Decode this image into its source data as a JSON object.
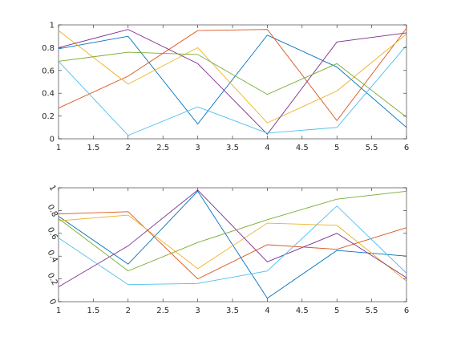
{
  "palette": [
    "#0072BD",
    "#D95319",
    "#EDB120",
    "#7E2F8E",
    "#77AC30",
    "#4DBEEE"
  ],
  "chart_data": [
    {
      "type": "line",
      "x": [
        1,
        2,
        3,
        4,
        5,
        6
      ],
      "xlim": [
        1,
        6
      ],
      "ylim": [
        0,
        1
      ],
      "xticks": [
        1,
        1.5,
        2,
        2.5,
        3,
        3.5,
        4,
        4.5,
        5,
        5.5,
        6
      ],
      "xtick_labels": [
        "1",
        "1.5",
        "2",
        "2.5",
        "3",
        "3.5",
        "4",
        "4.5",
        "5",
        "5.5",
        "6"
      ],
      "yticks": [
        0,
        0.2,
        0.4,
        0.6,
        0.8,
        1
      ],
      "ytick_labels": [
        "0",
        "0.2",
        "0.4",
        "0.6",
        "0.8",
        "1"
      ],
      "ytick_rotated": false,
      "grid": false,
      "series": [
        {
          "values": [
            0.79,
            0.9,
            0.13,
            0.91,
            0.63,
            0.1
          ]
        },
        {
          "values": [
            0.27,
            0.55,
            0.95,
            0.96,
            0.16,
            0.97
          ]
        },
        {
          "values": [
            0.95,
            0.48,
            0.8,
            0.14,
            0.42,
            0.92
          ]
        },
        {
          "values": [
            0.8,
            0.96,
            0.66,
            0.04,
            0.85,
            0.93
          ]
        },
        {
          "values": [
            0.68,
            0.76,
            0.74,
            0.39,
            0.66,
            0.19
          ]
        },
        {
          "values": [
            0.68,
            0.03,
            0.28,
            0.05,
            0.1,
            0.82
          ]
        }
      ]
    },
    {
      "type": "line",
      "x": [
        1,
        2,
        3,
        4,
        5,
        6
      ],
      "xlim": [
        1,
        6
      ],
      "ylim": [
        0,
        1
      ],
      "xticks": [
        1,
        1.5,
        2,
        2.5,
        3,
        3.5,
        4,
        4.5,
        5,
        5.5,
        6
      ],
      "xtick_labels": [
        "1",
        "1.5",
        "2",
        "2.5",
        "3",
        "3.5",
        "4",
        "4.5",
        "5",
        "5.5",
        "6"
      ],
      "yticks": [
        0,
        0.2,
        0.4,
        0.6,
        0.8,
        1
      ],
      "ytick_labels": [
        "0",
        "0.2",
        "0.4",
        "0.6",
        "0.8",
        "1"
      ],
      "ytick_rotated": true,
      "grid": false,
      "series": [
        {
          "values": [
            0.75,
            0.33,
            0.97,
            0.03,
            0.45,
            0.4
          ]
        },
        {
          "values": [
            0.77,
            0.79,
            0.2,
            0.5,
            0.46,
            0.65
          ]
        },
        {
          "values": [
            0.71,
            0.76,
            0.29,
            0.69,
            0.67,
            0.18
          ]
        },
        {
          "values": [
            0.13,
            0.49,
            0.98,
            0.35,
            0.6,
            0.21
          ]
        },
        {
          "values": [
            0.73,
            0.27,
            0.52,
            0.72,
            0.9,
            0.97
          ]
        },
        {
          "values": [
            0.56,
            0.15,
            0.16,
            0.27,
            0.84,
            0.25
          ]
        }
      ]
    }
  ]
}
